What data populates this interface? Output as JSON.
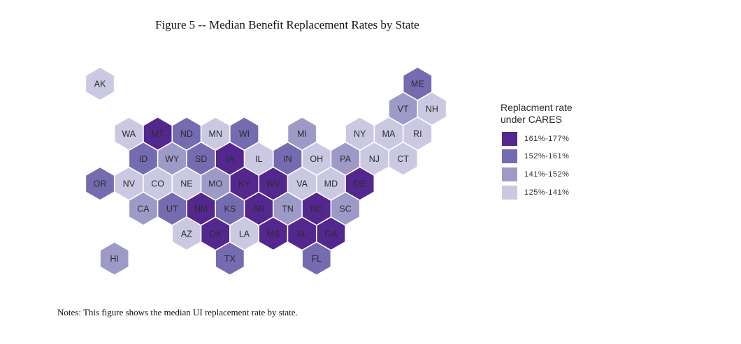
{
  "title": "Figure 5 -- Median Benefit Replacement Rates by State",
  "notes": "Notes: This figure shows the median UI replacement rate by state.",
  "legend": {
    "title_line1": "Replacment rate",
    "title_line2": "under CARES",
    "bins": [
      {
        "label": "161%-177%",
        "color": "#54278f"
      },
      {
        "label": "152%-161%",
        "color": "#756bb1"
      },
      {
        "label": "141%-152%",
        "color": "#9e9ac8"
      },
      {
        "label": "125%-141%",
        "color": "#cbc9e2"
      }
    ]
  },
  "chart_data": {
    "type": "hex-tile-map",
    "title": "Figure 5 -- Median Benefit Replacement Rates by State",
    "legend_title": "Replacment rate under CARES",
    "states": [
      {
        "state": "AK",
        "row": 0,
        "col": 0,
        "bin": 3
      },
      {
        "state": "ME",
        "row": 0,
        "col": 11,
        "bin": 1
      },
      {
        "state": "VT",
        "row": 1,
        "col": 10,
        "bin": 2
      },
      {
        "state": "NH",
        "row": 1,
        "col": 11,
        "bin": 3
      },
      {
        "state": "WA",
        "row": 2,
        "col": 1,
        "bin": 3
      },
      {
        "state": "MT",
        "row": 2,
        "col": 2,
        "bin": 0
      },
      {
        "state": "ND",
        "row": 2,
        "col": 3,
        "bin": 1
      },
      {
        "state": "MN",
        "row": 2,
        "col": 4,
        "bin": 3
      },
      {
        "state": "WI",
        "row": 2,
        "col": 5,
        "bin": 1
      },
      {
        "state": "MI",
        "row": 2,
        "col": 7,
        "bin": 2
      },
      {
        "state": "NY",
        "row": 2,
        "col": 9,
        "bin": 3
      },
      {
        "state": "MA",
        "row": 2,
        "col": 10,
        "bin": 3
      },
      {
        "state": "RI",
        "row": 2,
        "col": 11,
        "bin": 3
      },
      {
        "state": "ID",
        "row": 3,
        "col": 1,
        "bin": 1
      },
      {
        "state": "WY",
        "row": 3,
        "col": 2,
        "bin": 2
      },
      {
        "state": "SD",
        "row": 3,
        "col": 3,
        "bin": 1
      },
      {
        "state": "IA",
        "row": 3,
        "col": 4,
        "bin": 0
      },
      {
        "state": "IL",
        "row": 3,
        "col": 5,
        "bin": 3
      },
      {
        "state": "IN",
        "row": 3,
        "col": 6,
        "bin": 1
      },
      {
        "state": "OH",
        "row": 3,
        "col": 7,
        "bin": 3
      },
      {
        "state": "PA",
        "row": 3,
        "col": 8,
        "bin": 2
      },
      {
        "state": "NJ",
        "row": 3,
        "col": 9,
        "bin": 3
      },
      {
        "state": "CT",
        "row": 3,
        "col": 10,
        "bin": 3
      },
      {
        "state": "OR",
        "row": 4,
        "col": 0,
        "bin": 1
      },
      {
        "state": "NV",
        "row": 4,
        "col": 1,
        "bin": 3
      },
      {
        "state": "CO",
        "row": 4,
        "col": 2,
        "bin": 3
      },
      {
        "state": "NE",
        "row": 4,
        "col": 3,
        "bin": 3
      },
      {
        "state": "MO",
        "row": 4,
        "col": 4,
        "bin": 2
      },
      {
        "state": "KY",
        "row": 4,
        "col": 5,
        "bin": 0
      },
      {
        "state": "WV",
        "row": 4,
        "col": 6,
        "bin": 0
      },
      {
        "state": "VA",
        "row": 4,
        "col": 7,
        "bin": 3
      },
      {
        "state": "MD",
        "row": 4,
        "col": 8,
        "bin": 3
      },
      {
        "state": "DE",
        "row": 4,
        "col": 9,
        "bin": 0
      },
      {
        "state": "CA",
        "row": 5,
        "col": 1,
        "bin": 2
      },
      {
        "state": "UT",
        "row": 5,
        "col": 2,
        "bin": 1
      },
      {
        "state": "NM",
        "row": 5,
        "col": 3,
        "bin": 0
      },
      {
        "state": "KS",
        "row": 5,
        "col": 4,
        "bin": 1
      },
      {
        "state": "AR",
        "row": 5,
        "col": 5,
        "bin": 0
      },
      {
        "state": "TN",
        "row": 5,
        "col": 6,
        "bin": 2
      },
      {
        "state": "NC",
        "row": 5,
        "col": 7,
        "bin": 0
      },
      {
        "state": "SC",
        "row": 5,
        "col": 8,
        "bin": 2
      },
      {
        "state": "AZ",
        "row": 6,
        "col": 3,
        "bin": 3
      },
      {
        "state": "OK",
        "row": 6,
        "col": 4,
        "bin": 0
      },
      {
        "state": "LA",
        "row": 6,
        "col": 5,
        "bin": 3
      },
      {
        "state": "MS",
        "row": 6,
        "col": 6,
        "bin": 0
      },
      {
        "state": "AL",
        "row": 6,
        "col": 7,
        "bin": 0
      },
      {
        "state": "GA",
        "row": 6,
        "col": 8,
        "bin": 0
      },
      {
        "state": "HI",
        "row": 7,
        "col": 0,
        "bin": 2
      },
      {
        "state": "TX",
        "row": 7,
        "col": 4,
        "bin": 1
      },
      {
        "state": "FL",
        "row": 7,
        "col": 7,
        "bin": 1
      }
    ]
  }
}
